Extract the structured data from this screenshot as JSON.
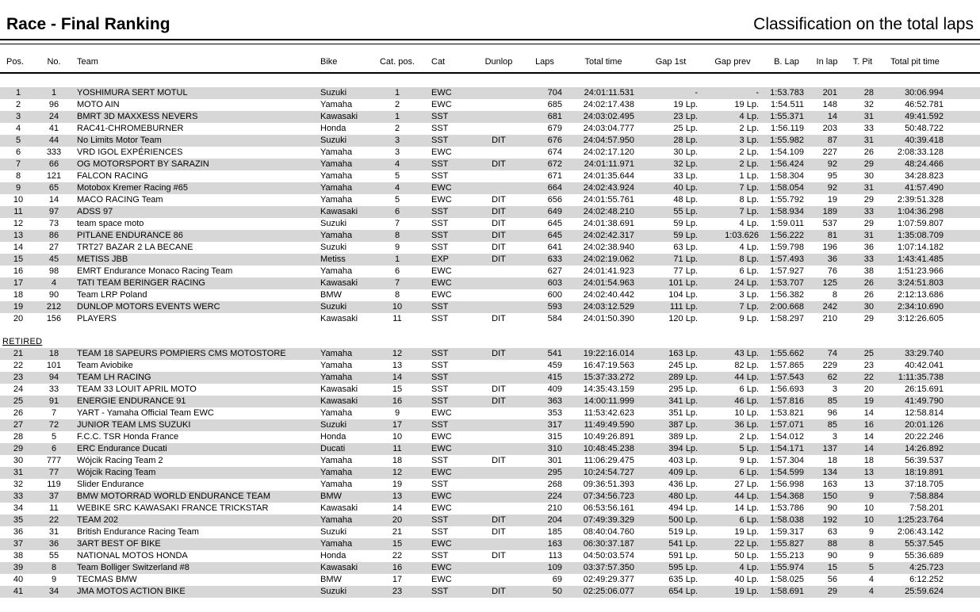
{
  "header": {
    "title_left": "Race - Final Ranking",
    "title_right": "Classification on the total laps"
  },
  "colors": {
    "stripe": "#d7d7d7",
    "rule": "#000000",
    "text": "#000000"
  },
  "table": {
    "columns": [
      {
        "key": "pos",
        "label": "Pos."
      },
      {
        "key": "no",
        "label": "No."
      },
      {
        "key": "team",
        "label": "Team"
      },
      {
        "key": "bike",
        "label": "Bike"
      },
      {
        "key": "catpos",
        "label": "Cat. pos."
      },
      {
        "key": "cat",
        "label": "Cat"
      },
      {
        "key": "dunlop",
        "label": "Dunlop"
      },
      {
        "key": "laps",
        "label": "Laps"
      },
      {
        "key": "total_time",
        "label": "Total time"
      },
      {
        "key": "gap_1st",
        "label": "Gap 1st"
      },
      {
        "key": "gap_prev",
        "label": "Gap prev"
      },
      {
        "key": "b_lap",
        "label": "B. Lap"
      },
      {
        "key": "in_lap",
        "label": "In lap"
      },
      {
        "key": "t_pit",
        "label": "T. Pit"
      },
      {
        "key": "total_pit",
        "label": "Total pit time"
      }
    ],
    "classified": [
      [
        "1",
        "1",
        "YOSHIMURA SERT MOTUL",
        "Suzuki",
        "1",
        "EWC",
        "",
        "704",
        "24:01:11.531",
        "-",
        "-",
        "1:53.783",
        "201",
        "28",
        "30:06.994"
      ],
      [
        "2",
        "96",
        "MOTO AIN",
        "Yamaha",
        "2",
        "EWC",
        "",
        "685",
        "24:02:17.438",
        "19 Lp.",
        "19 Lp.",
        "1:54.511",
        "148",
        "32",
        "46:52.781"
      ],
      [
        "3",
        "24",
        "BMRT 3D MAXXESS NEVERS",
        "Kawasaki",
        "1",
        "SST",
        "",
        "681",
        "24:03:02.495",
        "23 Lp.",
        "4 Lp.",
        "1:55.371",
        "14",
        "31",
        "49:41.592"
      ],
      [
        "4",
        "41",
        "RAC41-CHROMEBURNER",
        "Honda",
        "2",
        "SST",
        "",
        "679",
        "24:03:04.777",
        "25 Lp.",
        "2 Lp.",
        "1:56.119",
        "203",
        "33",
        "50:48.722"
      ],
      [
        "5",
        "44",
        "No Limits Motor Team",
        "Suzuki",
        "3",
        "SST",
        "DIT",
        "676",
        "24:04:57.950",
        "28 Lp.",
        "3 Lp.",
        "1:55.982",
        "87",
        "31",
        "40:39.418"
      ],
      [
        "6",
        "333",
        "VRD IGOL EXPÉRIENCES",
        "Yamaha",
        "3",
        "EWC",
        "",
        "674",
        "24:02:17.120",
        "30 Lp.",
        "2 Lp.",
        "1:54.109",
        "227",
        "26",
        "2:08:33.128"
      ],
      [
        "7",
        "66",
        "OG MOTORSPORT BY SARAZIN",
        "Yamaha",
        "4",
        "SST",
        "DIT",
        "672",
        "24:01:11.971",
        "32 Lp.",
        "2 Lp.",
        "1:56.424",
        "92",
        "29",
        "48:24.466"
      ],
      [
        "8",
        "121",
        "FALCON RACING",
        "Yamaha",
        "5",
        "SST",
        "",
        "671",
        "24:01:35.644",
        "33 Lp.",
        "1 Lp.",
        "1:58.304",
        "95",
        "30",
        "34:28.823"
      ],
      [
        "9",
        "65",
        "Motobox Kremer Racing #65",
        "Yamaha",
        "4",
        "EWC",
        "",
        "664",
        "24:02:43.924",
        "40 Lp.",
        "7 Lp.",
        "1:58.054",
        "92",
        "31",
        "41:57.490"
      ],
      [
        "10",
        "14",
        "MACO RACING Team",
        "Yamaha",
        "5",
        "EWC",
        "DIT",
        "656",
        "24:01:55.761",
        "48 Lp.",
        "8 Lp.",
        "1:55.792",
        "19",
        "29",
        "2:39:51.328"
      ],
      [
        "11",
        "97",
        "ADSS 97",
        "Kawasaki",
        "6",
        "SST",
        "DIT",
        "649",
        "24:02:48.210",
        "55 Lp.",
        "7 Lp.",
        "1:58.934",
        "189",
        "33",
        "1:04:36.298"
      ],
      [
        "12",
        "73",
        "team space moto",
        "Suzuki",
        "7",
        "SST",
        "DIT",
        "645",
        "24:01:38.691",
        "59 Lp.",
        "4 Lp.",
        "1:59.011",
        "537",
        "29",
        "1:07:59.807"
      ],
      [
        "13",
        "86",
        "PITLANE ENDURANCE 86",
        "Yamaha",
        "8",
        "SST",
        "DIT",
        "645",
        "24:02:42.317",
        "59 Lp.",
        "1:03.626",
        "1:56.222",
        "81",
        "31",
        "1:35:08.709"
      ],
      [
        "14",
        "27",
        "TRT27 BAZAR 2 LA BECANE",
        "Suzuki",
        "9",
        "SST",
        "DIT",
        "641",
        "24:02:38.940",
        "63 Lp.",
        "4 Lp.",
        "1:59.798",
        "196",
        "36",
        "1:07:14.182"
      ],
      [
        "15",
        "45",
        "METISS JBB",
        "Metiss",
        "1",
        "EXP",
        "DIT",
        "633",
        "24:02:19.062",
        "71 Lp.",
        "8 Lp.",
        "1:57.493",
        "36",
        "33",
        "1:43:41.485"
      ],
      [
        "16",
        "98",
        "EMRT Endurance Monaco Racing Team",
        "Yamaha",
        "6",
        "EWC",
        "",
        "627",
        "24:01:41.923",
        "77 Lp.",
        "6 Lp.",
        "1:57.927",
        "76",
        "38",
        "1:51:23.966"
      ],
      [
        "17",
        "4",
        "TATI TEAM BERINGER RACING",
        "Kawasaki",
        "7",
        "EWC",
        "",
        "603",
        "24:01:54.963",
        "101 Lp.",
        "24 Lp.",
        "1:53.707",
        "125",
        "26",
        "3:24:51.803"
      ],
      [
        "18",
        "90",
        "Team LRP Poland",
        "BMW",
        "8",
        "EWC",
        "",
        "600",
        "24:02:40.442",
        "104 Lp.",
        "3 Lp.",
        "1:56.382",
        "8",
        "26",
        "2:12:13.686"
      ],
      [
        "19",
        "212",
        "DUNLOP MOTORS EVENTS WERC",
        "Suzuki",
        "10",
        "SST",
        "",
        "593",
        "24:03:12.529",
        "111 Lp.",
        "7 Lp.",
        "2:00.668",
        "242",
        "30",
        "2:34:10.690"
      ],
      [
        "20",
        "156",
        "PLAYERS",
        "Kawasaki",
        "11",
        "SST",
        "DIT",
        "584",
        "24:01:50.390",
        "120 Lp.",
        "9 Lp.",
        "1:58.297",
        "210",
        "29",
        "3:12:26.605"
      ]
    ],
    "retired_label": "RETIRED",
    "retired": [
      [
        "21",
        "18",
        "TEAM 18 SAPEURS POMPIERS CMS MOTOSTORE",
        "Yamaha",
        "12",
        "SST",
        "DIT",
        "541",
        "19:22:16.014",
        "163 Lp.",
        "43 Lp.",
        "1:55.662",
        "74",
        "25",
        "33:29.740"
      ],
      [
        "22",
        "101",
        "Team Aviobike",
        "Yamaha",
        "13",
        "SST",
        "",
        "459",
        "16:47:19.563",
        "245 Lp.",
        "82 Lp.",
        "1:57.865",
        "229",
        "23",
        "40:42.041"
      ],
      [
        "23",
        "94",
        "TEAM LH RACING",
        "Yamaha",
        "14",
        "SST",
        "",
        "415",
        "15:37:33.272",
        "289 Lp.",
        "44 Lp.",
        "1:57.543",
        "62",
        "22",
        "1:11:35.738"
      ],
      [
        "24",
        "33",
        "TEAM 33 LOUIT APRIL MOTO",
        "Kawasaki",
        "15",
        "SST",
        "DIT",
        "409",
        "14:35:43.159",
        "295 Lp.",
        "6 Lp.",
        "1:56.693",
        "3",
        "20",
        "26:15.691"
      ],
      [
        "25",
        "91",
        "ENERGIE ENDURANCE 91",
        "Kawasaki",
        "16",
        "SST",
        "DIT",
        "363",
        "14:00:11.999",
        "341 Lp.",
        "46 Lp.",
        "1:57.816",
        "85",
        "19",
        "41:49.790"
      ],
      [
        "26",
        "7",
        "YART - Yamaha Official Team EWC",
        "Yamaha",
        "9",
        "EWC",
        "",
        "353",
        "11:53:42.623",
        "351 Lp.",
        "10 Lp.",
        "1:53.821",
        "96",
        "14",
        "12:58.814"
      ],
      [
        "27",
        "72",
        "JUNIOR TEAM LMS SUZUKI",
        "Suzuki",
        "17",
        "SST",
        "",
        "317",
        "11:49:49.590",
        "387 Lp.",
        "36 Lp.",
        "1:57.071",
        "85",
        "16",
        "20:01.126"
      ],
      [
        "28",
        "5",
        "F.C.C. TSR Honda France",
        "Honda",
        "10",
        "EWC",
        "",
        "315",
        "10:49:26.891",
        "389 Lp.",
        "2 Lp.",
        "1:54.012",
        "3",
        "14",
        "20:22.246"
      ],
      [
        "29",
        "6",
        "ERC Endurance Ducati",
        "Ducati",
        "11",
        "EWC",
        "",
        "310",
        "10:48:45.238",
        "394 Lp.",
        "5 Lp.",
        "1:54.171",
        "137",
        "14",
        "14:26.892"
      ],
      [
        "30",
        "777",
        "Wójcik Racing Team 2",
        "Yamaha",
        "18",
        "SST",
        "DIT",
        "301",
        "11:06:29.475",
        "403 Lp.",
        "9 Lp.",
        "1:57.304",
        "18",
        "18",
        "56:39.537"
      ],
      [
        "31",
        "77",
        "Wójcik Racing Team",
        "Yamaha",
        "12",
        "EWC",
        "",
        "295",
        "10:24:54.727",
        "409 Lp.",
        "6 Lp.",
        "1:54.599",
        "134",
        "13",
        "18:19.891"
      ],
      [
        "32",
        "119",
        "Slider Endurance",
        "Yamaha",
        "19",
        "SST",
        "",
        "268",
        "09:36:51.393",
        "436 Lp.",
        "27 Lp.",
        "1:56.998",
        "163",
        "13",
        "37:18.705"
      ],
      [
        "33",
        "37",
        "BMW MOTORRAD WORLD ENDURANCE TEAM",
        "BMW",
        "13",
        "EWC",
        "",
        "224",
        "07:34:56.723",
        "480 Lp.",
        "44 Lp.",
        "1:54.368",
        "150",
        "9",
        "7:58.884"
      ],
      [
        "34",
        "11",
        "WEBIKE SRC KAWASAKI FRANCE TRICKSTAR",
        "Kawasaki",
        "14",
        "EWC",
        "",
        "210",
        "06:53:56.161",
        "494 Lp.",
        "14 Lp.",
        "1:53.786",
        "90",
        "10",
        "7:58.201"
      ],
      [
        "35",
        "22",
        "TEAM 202",
        "Yamaha",
        "20",
        "SST",
        "DIT",
        "204",
        "07:49:39.329",
        "500 Lp.",
        "6 Lp.",
        "1:58.038",
        "192",
        "10",
        "1:25:23.764"
      ],
      [
        "36",
        "31",
        "British Endurance Racing Team",
        "Suzuki",
        "21",
        "SST",
        "DIT",
        "185",
        "08:40:04.760",
        "519 Lp.",
        "19 Lp.",
        "1:59.317",
        "63",
        "9",
        "2:06:43.142"
      ],
      [
        "37",
        "36",
        "3ART BEST OF BIKE",
        "Yamaha",
        "15",
        "EWC",
        "",
        "163",
        "06:30:37.187",
        "541 Lp.",
        "22 Lp.",
        "1:55.827",
        "88",
        "8",
        "55:37.545"
      ],
      [
        "38",
        "55",
        "NATIONAL MOTOS HONDA",
        "Honda",
        "22",
        "SST",
        "DIT",
        "113",
        "04:50:03.574",
        "591 Lp.",
        "50 Lp.",
        "1:55.213",
        "90",
        "9",
        "55:36.689"
      ],
      [
        "39",
        "8",
        "Team Bolliger Switzerland #8",
        "Kawasaki",
        "16",
        "EWC",
        "",
        "109",
        "03:37:57.350",
        "595 Lp.",
        "4 Lp.",
        "1:55.974",
        "15",
        "5",
        "4:25.723"
      ],
      [
        "40",
        "9",
        "TECMAS BMW",
        "BMW",
        "17",
        "EWC",
        "",
        "69",
        "02:49:29.377",
        "635 Lp.",
        "40 Lp.",
        "1:58.025",
        "56",
        "4",
        "6:12.252"
      ],
      [
        "41",
        "34",
        "JMA MOTOS ACTION BIKE",
        "Suzuki",
        "23",
        "SST",
        "DIT",
        "50",
        "02:25:06.077",
        "654 Lp.",
        "19 Lp.",
        "1:58.691",
        "29",
        "4",
        "25:59.624"
      ]
    ]
  }
}
